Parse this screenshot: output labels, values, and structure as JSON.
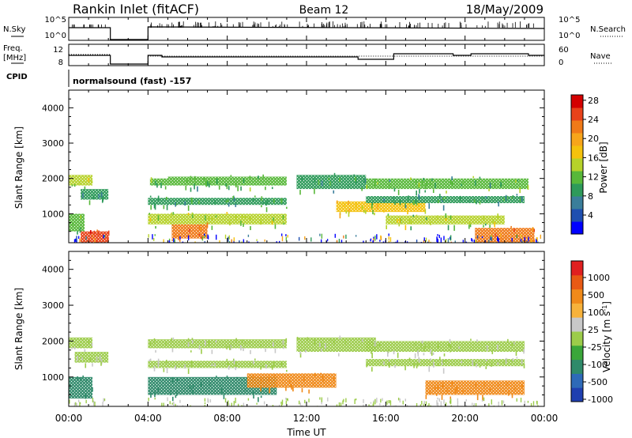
{
  "header": {
    "station": "Rankin Inlet (fitACF)",
    "beam": "Beam 12",
    "date": "18/May/2009"
  },
  "summary": {
    "nsky_label": "N.Sky",
    "nsky_ticks": [
      "10^5",
      "10^0"
    ],
    "nsearch_label": "N.Search",
    "nsearch_ticks": [
      "10^5",
      "10^0"
    ],
    "freq_label": [
      "Freq.",
      "[MHz]"
    ],
    "freq_ticks": [
      "12",
      "8"
    ],
    "nave_label": "Nave",
    "nave_ticks": [
      "60",
      "0"
    ],
    "cpid_label": "CPID",
    "cpid_text": "normalsound (fast) -157"
  },
  "xaxis": {
    "label": "Time UT",
    "ticks": [
      "00:00",
      "04:00",
      "08:00",
      "12:00",
      "16:00",
      "20:00",
      "00:00"
    ]
  },
  "chart_data": [
    {
      "type": "heatmap",
      "title": "",
      "xlabel": "Time UT",
      "ylabel": "Slant Range [km]",
      "xlim": [
        0,
        24
      ],
      "ylim": [
        180,
        4500
      ],
      "yticks": [
        "1000",
        "2000",
        "3000",
        "4000"
      ],
      "colorbar": {
        "label": "Power [dB]",
        "ticks": [
          "4",
          "8",
          "12",
          "16",
          "20",
          "24",
          "28"
        ],
        "colors": [
          "#0000ff",
          "#1f4fb0",
          "#3a7e9a",
          "#2e9a5a",
          "#58b83a",
          "#b6d22a",
          "#f4c20d",
          "#f7a51b",
          "#f07a18",
          "#e8421a",
          "#d40000"
        ]
      },
      "bands": [
        {
          "t0": 0.0,
          "t1": 1.2,
          "r0": 1800,
          "r1": 2100,
          "v": 14
        },
        {
          "t0": 0.6,
          "t1": 2.0,
          "r0": 1400,
          "r1": 1700,
          "v": 9
        },
        {
          "t0": 0.0,
          "t1": 0.8,
          "r0": 500,
          "r1": 1000,
          "v": 12
        },
        {
          "t0": 0.6,
          "t1": 2.0,
          "r0": 180,
          "r1": 500,
          "v": 26
        },
        {
          "t0": 4.1,
          "t1": 5.0,
          "r0": 1800,
          "r1": 2000,
          "v": 12
        },
        {
          "t0": 4.0,
          "t1": 11.0,
          "r0": 700,
          "r1": 1000,
          "v": 14
        },
        {
          "t0": 4.0,
          "t1": 11.0,
          "r0": 1250,
          "r1": 1450,
          "v": 10
        },
        {
          "t0": 5.2,
          "t1": 7.0,
          "r0": 300,
          "r1": 700,
          "v": 25
        },
        {
          "t0": 5.0,
          "t1": 11.0,
          "r0": 1800,
          "r1": 2050,
          "v": 11
        },
        {
          "t0": 11.5,
          "t1": 15.0,
          "r0": 1700,
          "r1": 2100,
          "v": 10
        },
        {
          "t0": 13.5,
          "t1": 18.0,
          "r0": 1050,
          "r1": 1350,
          "v": 17
        },
        {
          "t0": 15.0,
          "t1": 23.2,
          "r0": 1700,
          "r1": 2000,
          "v": 11
        },
        {
          "t0": 15.0,
          "t1": 23.0,
          "r0": 1300,
          "r1": 1500,
          "v": 9
        },
        {
          "t0": 16.0,
          "t1": 22.0,
          "r0": 700,
          "r1": 950,
          "v": 14
        },
        {
          "t0": 20.5,
          "t1": 23.5,
          "r0": 180,
          "r1": 600,
          "v": 24
        }
      ]
    },
    {
      "type": "heatmap",
      "title": "",
      "xlabel": "Time UT",
      "ylabel": "Slant Range [km]",
      "xlim": [
        0,
        24
      ],
      "ylim": [
        180,
        4500
      ],
      "yticks": [
        "1000",
        "2000",
        "3000",
        "4000"
      ],
      "colorbar": {
        "label": "Velocity [m s^-1]",
        "ticks": [
          "1000",
          "500",
          "100",
          "25",
          "-25",
          "-100",
          "-500",
          "-1000"
        ],
        "colors": [
          "#1f3fb0",
          "#2e6ab8",
          "#2f8a6a",
          "#3aa63a",
          "#9ccc4a",
          "#c8c8c8",
          "#f7b23b",
          "#f08a1a",
          "#e85a14",
          "#e02020"
        ]
      },
      "bands": [
        {
          "t0": 0.0,
          "t1": 1.2,
          "r0": 1800,
          "r1": 2100,
          "v": 0
        },
        {
          "t0": 0.3,
          "t1": 2.0,
          "r0": 1400,
          "r1": 1700,
          "v": 0
        },
        {
          "t0": 0.0,
          "t1": 1.2,
          "r0": 400,
          "r1": 1000,
          "v": 200
        },
        {
          "t0": 4.0,
          "t1": 11.0,
          "r0": 1800,
          "r1": 2050,
          "v": 0
        },
        {
          "t0": 4.0,
          "t1": 11.0,
          "r0": 1250,
          "r1": 1450,
          "v": 0
        },
        {
          "t0": 4.0,
          "t1": 10.5,
          "r0": 500,
          "r1": 1000,
          "v": 200
        },
        {
          "t0": 9.0,
          "t1": 13.5,
          "r0": 700,
          "r1": 1100,
          "v": -150
        },
        {
          "t0": 11.5,
          "t1": 15.5,
          "r0": 1700,
          "r1": 2100,
          "v": 0
        },
        {
          "t0": 15.0,
          "t1": 23.0,
          "r0": 1700,
          "r1": 2000,
          "v": 0
        },
        {
          "t0": 15.0,
          "t1": 23.0,
          "r0": 1300,
          "r1": 1500,
          "v": 0
        },
        {
          "t0": 18.0,
          "t1": 23.0,
          "r0": 500,
          "r1": 900,
          "v": -150
        }
      ]
    }
  ]
}
